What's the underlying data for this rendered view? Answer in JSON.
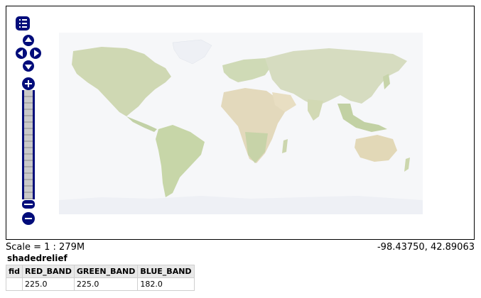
{
  "map": {
    "layer": "shadedrelief",
    "scale_text": "Scale = 1 : 279M",
    "mouse_position": "-98.43750, 42.89063",
    "colors": {
      "ocean": "#f6f7f9",
      "land_low": "#d7dec0",
      "land_green": "#c5d3ac",
      "desert": "#e7dcc0",
      "ice": "#eef0f5",
      "controls": "#000c7a"
    },
    "controls": [
      "layer-switcher-icon",
      "pan-up-icon",
      "pan-left-icon",
      "pan-right-icon",
      "pan-down-icon",
      "zoom-in-icon",
      "zoom-out-icon",
      "zoom-slider"
    ]
  },
  "feature_info": {
    "layer_name": "shadedrelief",
    "columns": [
      "fid",
      "RED_BAND",
      "GREEN_BAND",
      "BLUE_BAND"
    ],
    "rows": [
      [
        "",
        "225.0",
        "225.0",
        "182.0"
      ]
    ]
  }
}
